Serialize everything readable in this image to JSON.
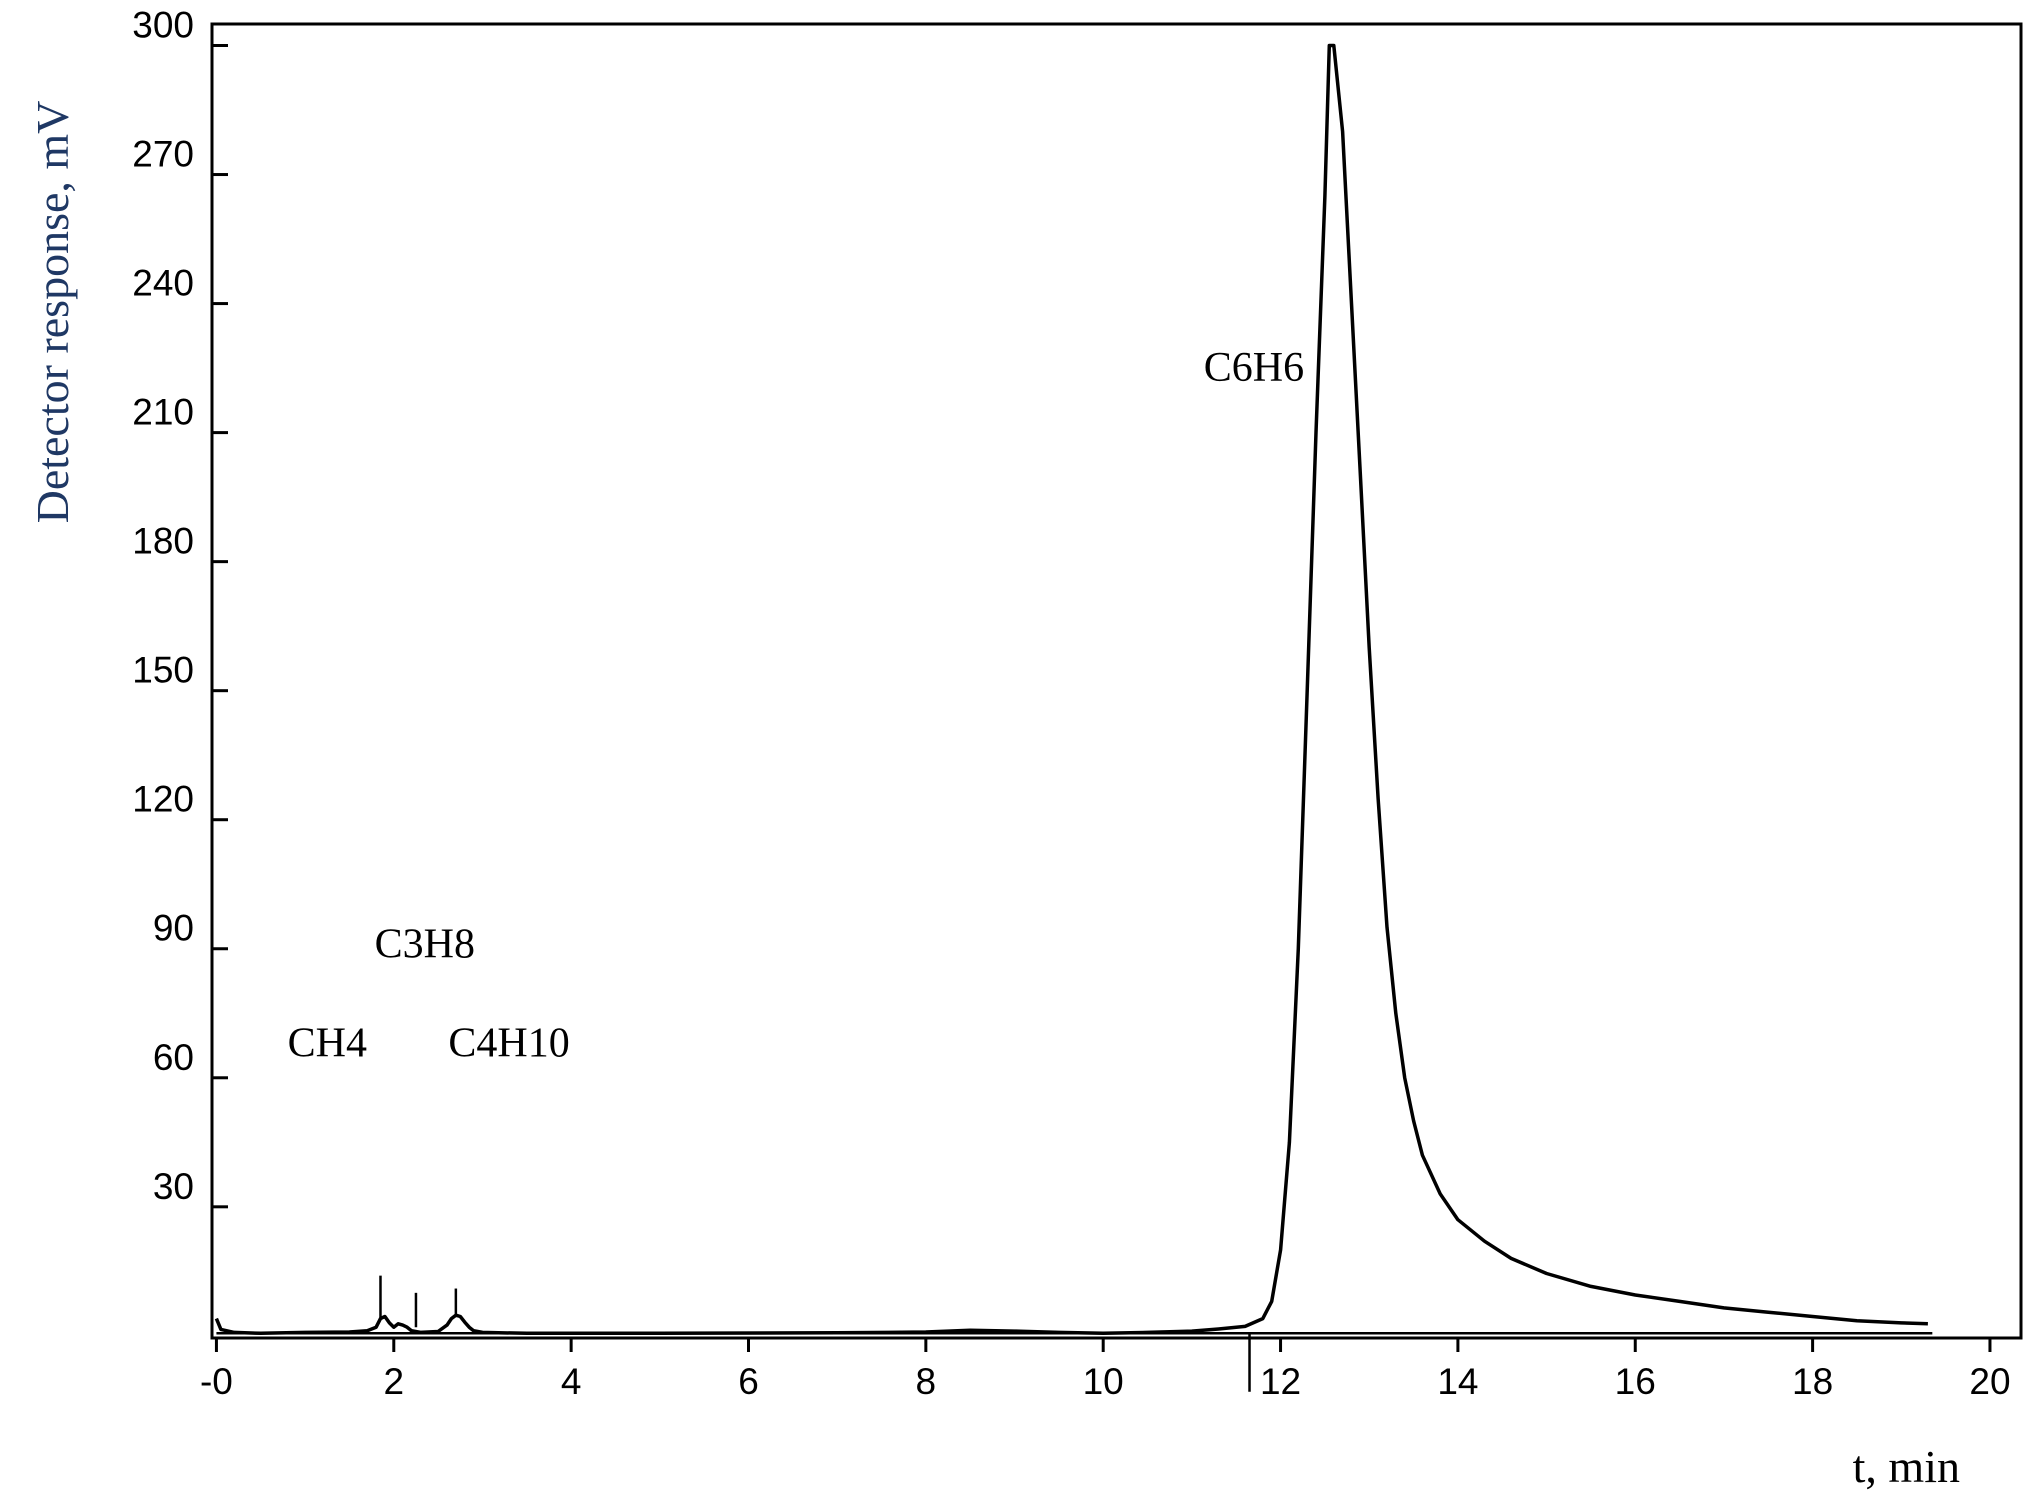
{
  "chart_data": {
    "type": "line",
    "title": "",
    "xlabel": "t, min",
    "ylabel": "Detector response, mV",
    "xlim": [
      -0.05,
      20.35
    ],
    "ylim": [
      -0.5,
      305
    ],
    "x_ticks": [
      0,
      2,
      4,
      6,
      8,
      10,
      12,
      14,
      16,
      18,
      20
    ],
    "x_tick_labels": [
      "-0",
      "2",
      "4",
      "6",
      "8",
      "10",
      "12",
      "14",
      "16",
      "18",
      "20"
    ],
    "y_ticks": [
      30,
      60,
      90,
      120,
      150,
      180,
      210,
      240,
      270,
      300
    ],
    "y_tick_labels": [
      "30",
      "60",
      "90",
      "120",
      "150",
      "180",
      "210",
      "240",
      "270",
      "300"
    ],
    "grid": false,
    "series": [
      {
        "x": [
          0,
          0.05,
          0.2,
          0.5,
          1,
          1.5,
          1.7,
          1.8,
          1.85,
          1.9,
          1.95,
          2.0,
          2.05,
          2.1,
          2.15,
          2.2,
          2.3,
          2.5,
          2.6,
          2.65,
          2.7,
          2.75,
          2.8,
          2.85,
          2.9,
          3.0,
          3.5,
          5,
          7,
          8,
          8.5,
          9,
          9.5,
          10,
          10.5,
          11,
          11.3,
          11.6,
          11.8,
          11.9,
          12.0,
          12.1,
          12.2,
          12.3,
          12.4,
          12.5,
          12.55,
          12.6,
          12.7,
          12.8,
          12.9,
          13.0,
          13.1,
          13.2,
          13.3,
          13.4,
          13.5,
          13.6,
          13.8,
          14.0,
          14.3,
          14.6,
          15.0,
          15.5,
          16.0,
          16.5,
          17.0,
          17.5,
          18.0,
          18.5,
          19.0,
          19.3
        ],
        "y": [
          4,
          1.5,
          0.8,
          0.6,
          0.8,
          0.9,
          1.2,
          2,
          4,
          4.5,
          3,
          2,
          2.8,
          2.5,
          2,
          1.2,
          0.8,
          1,
          2.5,
          4,
          4.8,
          4.5,
          3.2,
          2,
          1.2,
          0.8,
          0.6,
          0.6,
          0.7,
          0.9,
          1.3,
          1.1,
          0.8,
          0.6,
          0.8,
          1.1,
          1.6,
          2.2,
          4,
          8,
          20,
          45,
          90,
          150,
          210,
          265,
          300,
          300,
          280,
          240,
          200,
          160,
          125,
          95,
          75,
          60,
          50,
          42,
          33,
          27,
          22,
          18,
          14.5,
          11.5,
          9.5,
          8,
          6.5,
          5.5,
          4.5,
          3.5,
          3,
          2.8
        ]
      }
    ],
    "annotations": [
      {
        "text": "CH4",
        "x": 1.25,
        "y": 65
      },
      {
        "text": "C3H8",
        "x": 2.35,
        "y": 88
      },
      {
        "text": "C4H10",
        "x": 3.3,
        "y": 65
      },
      {
        "text": "C6H6",
        "x": 11.7,
        "y": 222
      }
    ],
    "peak_markers": [
      {
        "x": 1.85,
        "y_from": 4,
        "y_to": 14
      },
      {
        "x": 2.25,
        "y_from": 2,
        "y_to": 10
      },
      {
        "x": 2.7,
        "y_from": 5,
        "y_to": 11
      },
      {
        "x": 11.65,
        "y_from": 0.8,
        "y_to": -13
      }
    ]
  }
}
